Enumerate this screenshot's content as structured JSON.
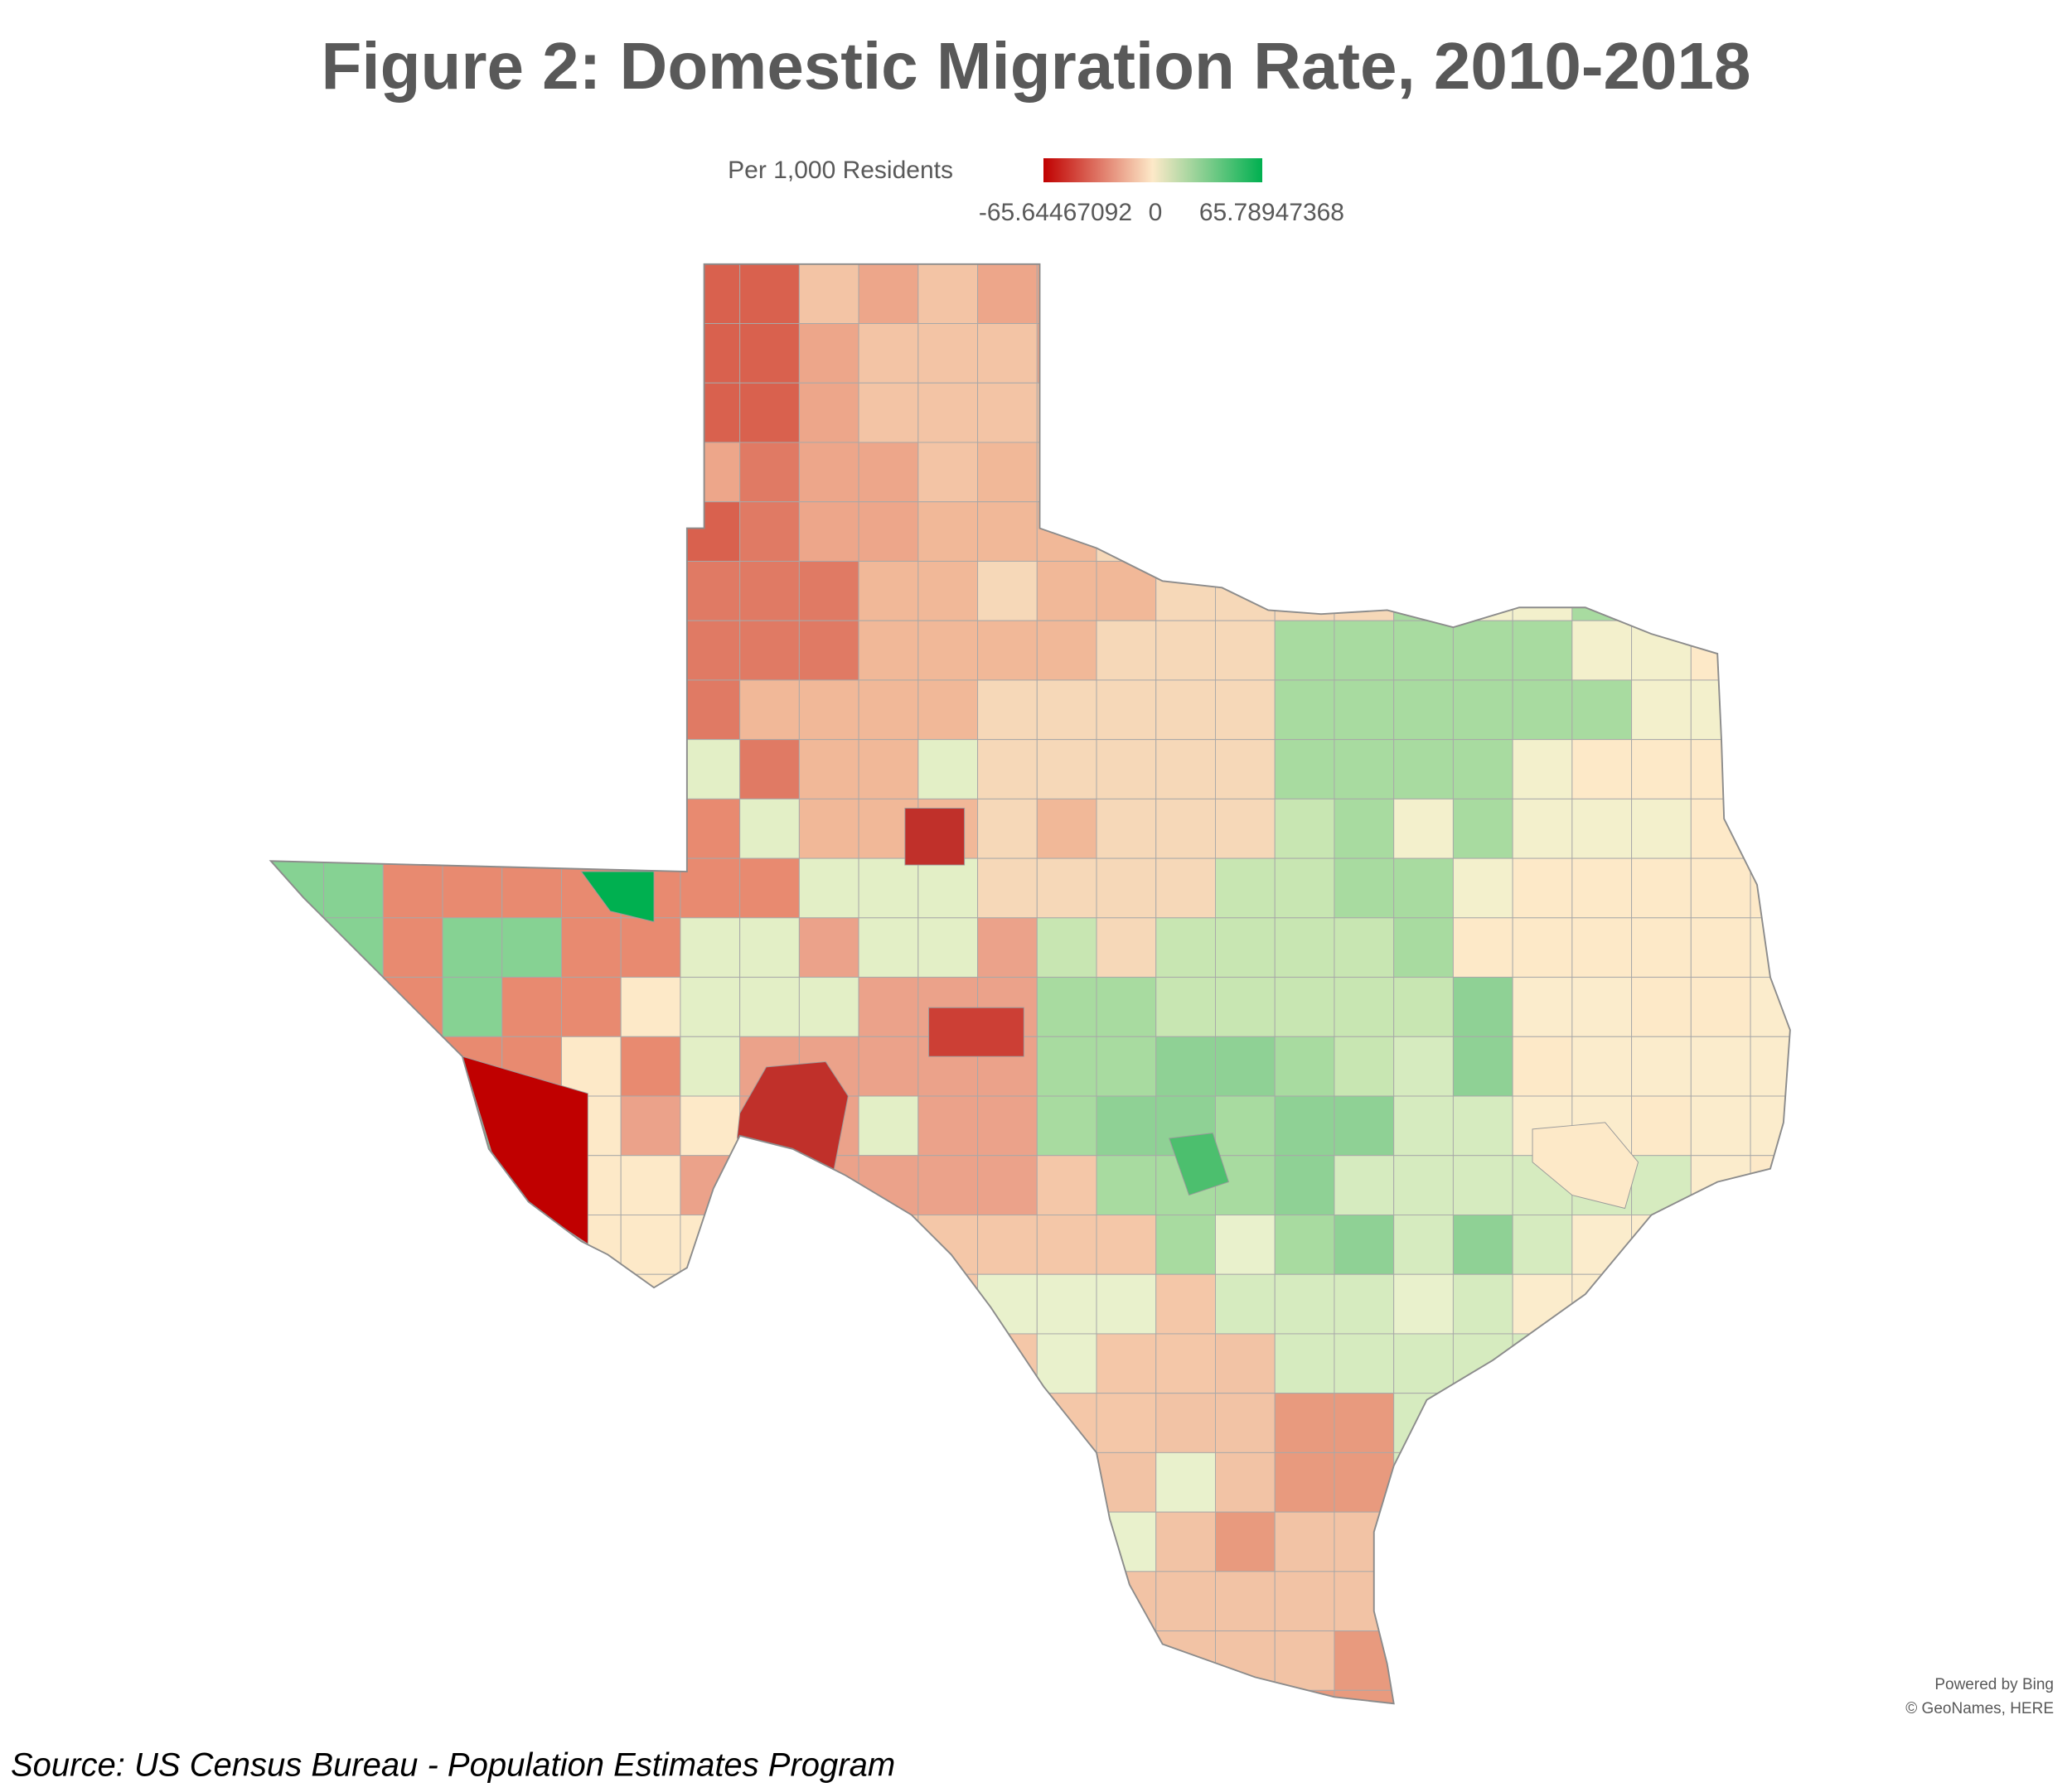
{
  "title": "Figure 2: Domestic Migration Rate, 2010-2018",
  "legend": {
    "label": "Per 1,000 Residents",
    "min": -65.64467092,
    "mid": 0,
    "max": 65.78947368,
    "colors": [
      "#c00000",
      "#fde9c8",
      "#00b050"
    ]
  },
  "attribution": [
    "Powered by Bing",
    "© GeoNames, HERE"
  ],
  "source": "Source: US Census Bureau - Population Estimates Program"
}
